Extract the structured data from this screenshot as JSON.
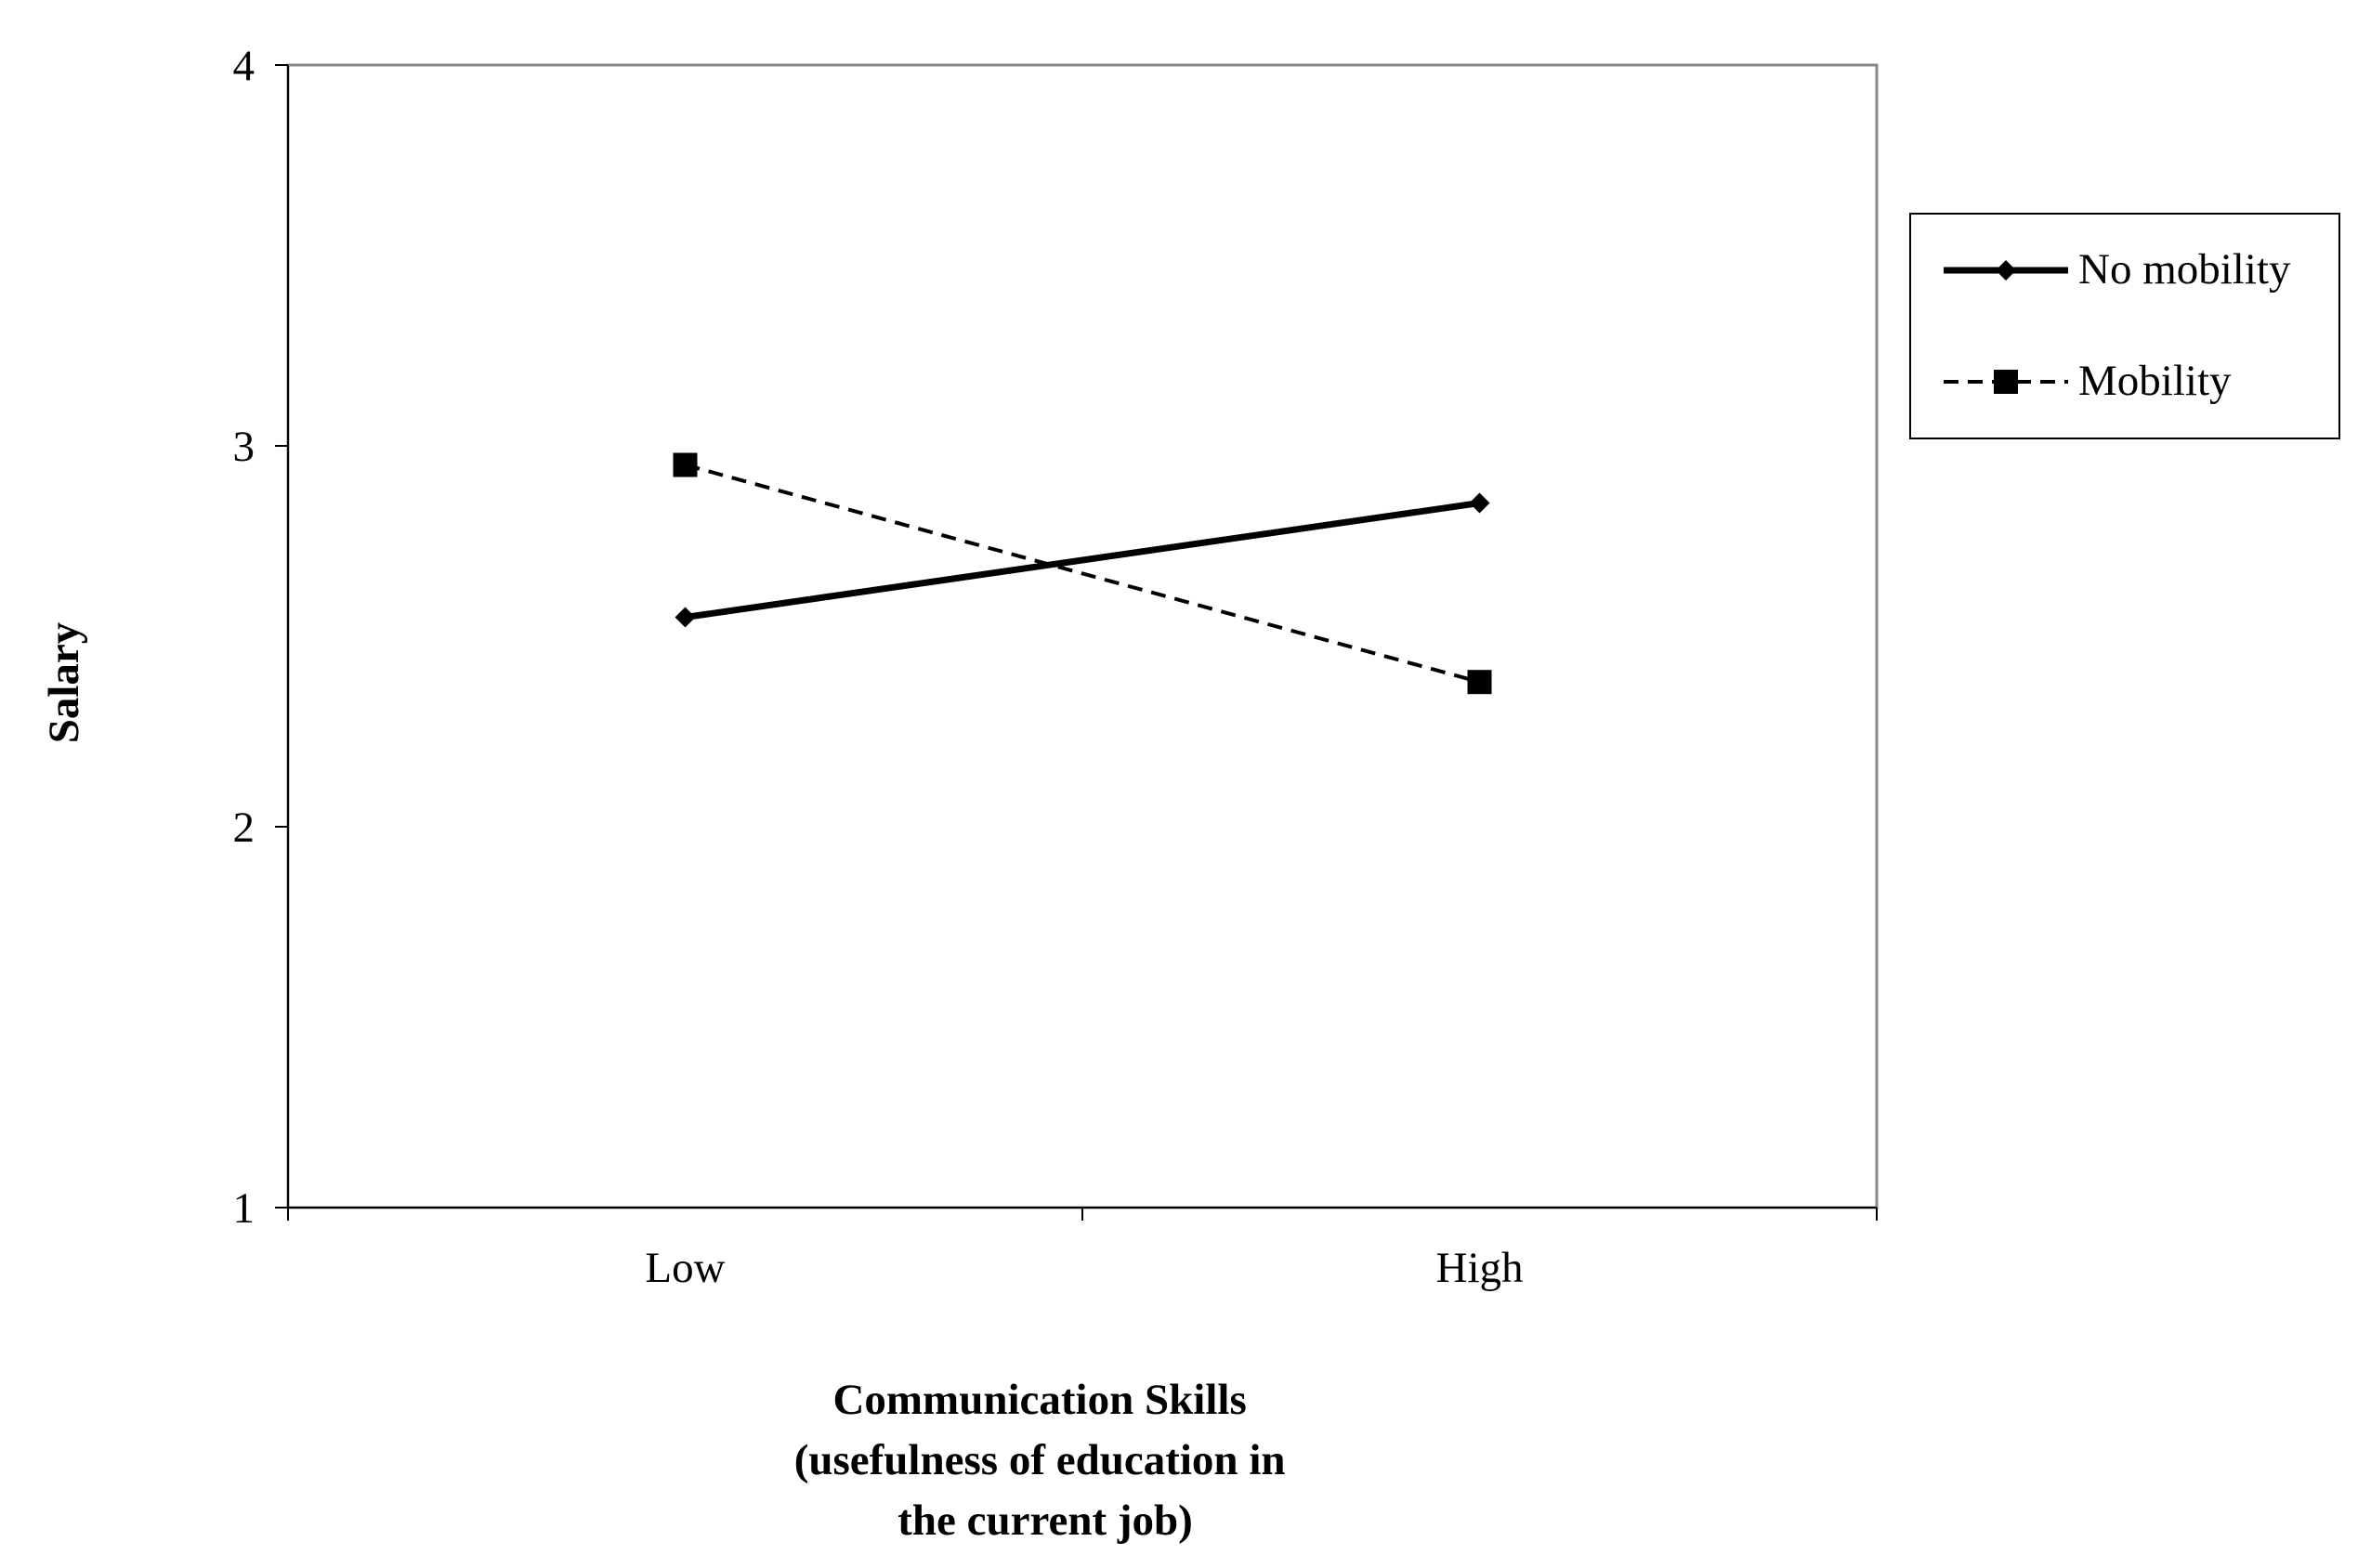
{
  "chart_data": {
    "type": "line",
    "title": "",
    "categories": [
      "Low",
      "High"
    ],
    "series": [
      {
        "name": "No mobility",
        "values": [
          2.55,
          2.85
        ],
        "line_style": "solid",
        "marker": "diamond",
        "color": "#000000"
      },
      {
        "name": "Mobility",
        "values": [
          2.95,
          2.38
        ],
        "line_style": "dashed",
        "marker": "square",
        "color": "#000000"
      }
    ],
    "xlabel_lines": [
      "Communication Skills",
      "(usefulness of education in",
      "the current job)"
    ],
    "ylabel": "Salary",
    "ylim": [
      1,
      4
    ],
    "yticks": [
      "1",
      "2",
      "3",
      "4"
    ],
    "grid": false,
    "legend_position": "right"
  }
}
